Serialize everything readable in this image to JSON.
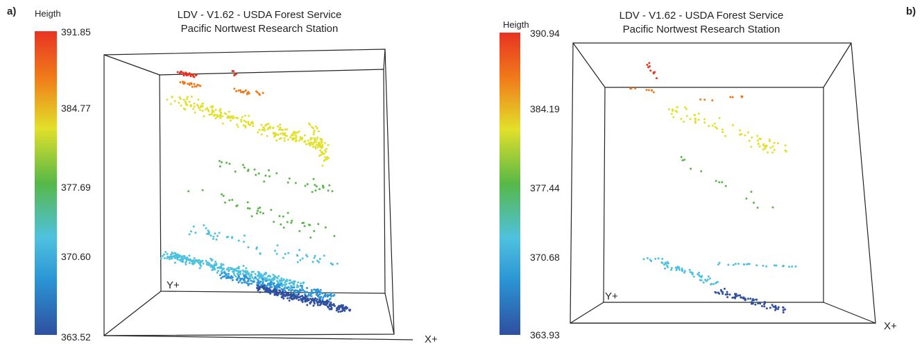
{
  "chart_data": [
    {
      "type": "scatter",
      "panel_label": "a)",
      "title_line1": "LDV - V1.62 - USDA Forest Service",
      "title_line2": "Pacific Nortwest Research Station",
      "colorbar_label": "Heigth",
      "colorbar_ticks": [
        "391.85",
        "384.77",
        "377.69",
        "370.60",
        "363.52"
      ],
      "colorbar_range": [
        363.52,
        391.85
      ],
      "xlabel": "X+",
      "ylabel": "Y+",
      "colors": [
        "#e83323",
        "#f07a1a",
        "#e2e02a",
        "#57b847",
        "#4fc1df",
        "#2b94d4",
        "#2f4f9f"
      ]
    },
    {
      "type": "scatter",
      "panel_label": "b)",
      "title_line1": "LDV - V1.62 - USDA Forest Service",
      "title_line2": "Pacific Nortwest Research Station",
      "colorbar_label": "Heigth",
      "colorbar_ticks": [
        "390.94",
        "384.19",
        "377.44",
        "370.68",
        "363.93"
      ],
      "colorbar_range": [
        363.93,
        390.94
      ],
      "xlabel": "X+",
      "ylabel": "Y+",
      "colors": [
        "#e83323",
        "#f07a1a",
        "#e2e02a",
        "#57b847",
        "#4fc1df",
        "#2b94d4",
        "#2f4f9f"
      ]
    }
  ]
}
